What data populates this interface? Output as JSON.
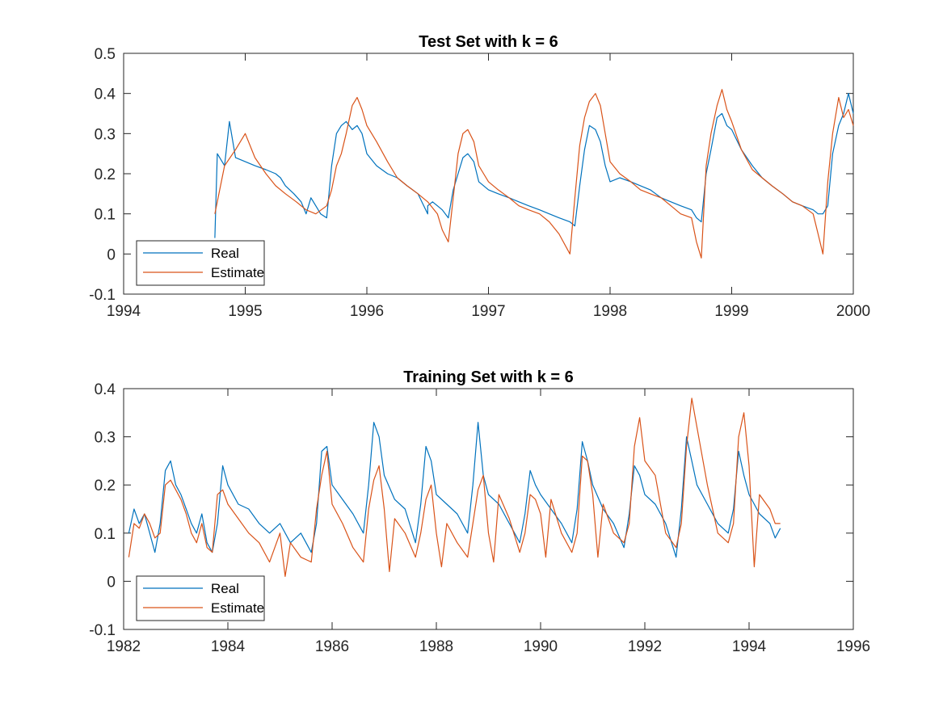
{
  "colors": {
    "real": "#0072BD",
    "estimate": "#D95319"
  },
  "chart_data": [
    {
      "type": "line",
      "title": "Test Set with k = 6",
      "xlim": [
        1994,
        2000
      ],
      "ylim": [
        -0.1,
        0.5
      ],
      "xticks": [
        1994,
        1995,
        1996,
        1997,
        1998,
        1999,
        2000
      ],
      "yticks": [
        -0.1,
        0,
        0.1,
        0.2,
        0.3,
        0.4,
        0.5
      ],
      "xtick_labels": [
        "1994",
        "1995",
        "1996",
        "1997",
        "1998",
        "1999",
        "2000"
      ],
      "ytick_labels": [
        "-0.1",
        "0",
        "0.1",
        "0.2",
        "0.3",
        "0.4",
        "0.5"
      ],
      "legend": {
        "position": "bottom-left",
        "entries": [
          "Real",
          "Estimate"
        ]
      },
      "series": [
        {
          "name": "Real",
          "x": [
            1994.75,
            1994.77,
            1994.83,
            1994.87,
            1994.92,
            1995.0,
            1995.08,
            1995.17,
            1995.25,
            1995.29,
            1995.33,
            1995.4,
            1995.46,
            1995.5,
            1995.54,
            1995.58,
            1995.62,
            1995.67,
            1995.71,
            1995.75,
            1995.79,
            1995.83,
            1995.88,
            1995.92,
            1995.96,
            1996.0,
            1996.08,
            1996.17,
            1996.25,
            1996.33,
            1996.42,
            1996.5,
            1996.5,
            1996.54,
            1996.58,
            1996.62,
            1996.67,
            1996.71,
            1996.75,
            1996.79,
            1996.83,
            1996.88,
            1996.92,
            1996.96,
            1997.0,
            1997.08,
            1997.17,
            1997.25,
            1997.33,
            1997.42,
            1997.5,
            1997.58,
            1997.67,
            1997.71,
            1997.75,
            1997.79,
            1997.83,
            1997.88,
            1997.92,
            1997.96,
            1998.0,
            1998.08,
            1998.17,
            1998.25,
            1998.33,
            1998.42,
            1998.5,
            1998.58,
            1998.67,
            1998.71,
            1998.75,
            1998.79,
            1998.83,
            1998.88,
            1998.92,
            1998.96,
            1999.0,
            1999.08,
            1999.17,
            1999.25,
            1999.33,
            1999.42,
            1999.5,
            1999.58,
            1999.67,
            1999.71,
            1999.75,
            1999.79,
            1999.83,
            1999.88,
            1999.92,
            1999.96,
            2000.0
          ],
          "y": [
            0.04,
            0.25,
            0.22,
            0.33,
            0.24,
            0.23,
            0.22,
            0.21,
            0.2,
            0.19,
            0.17,
            0.15,
            0.13,
            0.1,
            0.14,
            0.12,
            0.1,
            0.09,
            0.22,
            0.3,
            0.32,
            0.33,
            0.31,
            0.32,
            0.3,
            0.25,
            0.22,
            0.2,
            0.19,
            0.17,
            0.15,
            0.1,
            0.12,
            0.13,
            0.12,
            0.11,
            0.09,
            0.16,
            0.2,
            0.24,
            0.25,
            0.23,
            0.18,
            0.17,
            0.16,
            0.15,
            0.14,
            0.13,
            0.12,
            0.11,
            0.1,
            0.09,
            0.08,
            0.07,
            0.17,
            0.26,
            0.32,
            0.31,
            0.28,
            0.22,
            0.18,
            0.19,
            0.18,
            0.17,
            0.16,
            0.14,
            0.13,
            0.12,
            0.11,
            0.09,
            0.08,
            0.2,
            0.26,
            0.34,
            0.35,
            0.32,
            0.31,
            0.26,
            0.22,
            0.19,
            0.17,
            0.15,
            0.13,
            0.12,
            0.11,
            0.1,
            0.1,
            0.12,
            0.25,
            0.32,
            0.35,
            0.4,
            0.35
          ]
        },
        {
          "name": "Estimate",
          "x": [
            1994.75,
            1994.83,
            1994.92,
            1995.0,
            1995.08,
            1995.17,
            1995.25,
            1995.33,
            1995.42,
            1995.5,
            1995.58,
            1995.67,
            1995.71,
            1995.75,
            1995.79,
            1995.83,
            1995.88,
            1995.92,
            1995.96,
            1996.0,
            1996.08,
            1996.17,
            1996.25,
            1996.33,
            1996.42,
            1996.5,
            1996.58,
            1996.62,
            1996.67,
            1996.71,
            1996.75,
            1996.79,
            1996.83,
            1996.88,
            1996.92,
            1996.96,
            1997.0,
            1997.08,
            1997.17,
            1997.25,
            1997.33,
            1997.42,
            1997.5,
            1997.58,
            1997.67,
            1997.71,
            1997.75,
            1997.79,
            1997.83,
            1997.88,
            1997.92,
            1997.96,
            1998.0,
            1998.08,
            1998.17,
            1998.25,
            1998.33,
            1998.42,
            1998.5,
            1998.58,
            1998.67,
            1998.71,
            1998.75,
            1998.79,
            1998.83,
            1998.88,
            1998.92,
            1998.96,
            1999.0,
            1999.08,
            1999.17,
            1999.25,
            1999.33,
            1999.42,
            1999.5,
            1999.58,
            1999.67,
            1999.71,
            1999.75,
            1999.79,
            1999.83,
            1999.88,
            1999.92,
            1999.96,
            2000.0
          ],
          "y": [
            0.1,
            0.22,
            0.26,
            0.3,
            0.24,
            0.2,
            0.17,
            0.15,
            0.13,
            0.11,
            0.1,
            0.12,
            0.16,
            0.22,
            0.25,
            0.3,
            0.37,
            0.39,
            0.36,
            0.32,
            0.28,
            0.23,
            0.19,
            0.17,
            0.15,
            0.13,
            0.1,
            0.06,
            0.03,
            0.14,
            0.25,
            0.3,
            0.31,
            0.28,
            0.22,
            0.2,
            0.18,
            0.16,
            0.14,
            0.12,
            0.11,
            0.1,
            0.08,
            0.05,
            0.0,
            0.14,
            0.27,
            0.34,
            0.38,
            0.4,
            0.37,
            0.3,
            0.23,
            0.2,
            0.18,
            0.16,
            0.15,
            0.14,
            0.12,
            0.1,
            0.09,
            0.03,
            -0.01,
            0.22,
            0.3,
            0.37,
            0.41,
            0.36,
            0.33,
            0.26,
            0.21,
            0.19,
            0.17,
            0.15,
            0.13,
            0.12,
            0.1,
            0.05,
            0.0,
            0.18,
            0.3,
            0.39,
            0.34,
            0.36,
            0.32
          ]
        }
      ]
    },
    {
      "type": "line",
      "title": "Training Set with k = 6",
      "xlim": [
        1982,
        1996
      ],
      "ylim": [
        -0.1,
        0.4
      ],
      "xticks": [
        1982,
        1984,
        1986,
        1988,
        1990,
        1992,
        1994,
        1996
      ],
      "yticks": [
        -0.1,
        0,
        0.1,
        0.2,
        0.3,
        0.4
      ],
      "xtick_labels": [
        "1982",
        "1984",
        "1986",
        "1988",
        "1990",
        "1992",
        "1994",
        "1996"
      ],
      "ytick_labels": [
        "-0.1",
        "0",
        "0.1",
        "0.2",
        "0.3",
        "0.4"
      ],
      "legend": {
        "position": "bottom-left",
        "entries": [
          "Real",
          "Estimate"
        ]
      },
      "series": [
        {
          "name": "Real",
          "x": [
            1982.1,
            1982.2,
            1982.3,
            1982.4,
            1982.5,
            1982.6,
            1982.7,
            1982.8,
            1982.9,
            1983.0,
            1983.1,
            1983.2,
            1983.3,
            1983.4,
            1983.5,
            1983.6,
            1983.7,
            1983.8,
            1983.9,
            1984.0,
            1984.2,
            1984.4,
            1984.6,
            1984.8,
            1985.0,
            1985.2,
            1985.4,
            1985.6,
            1985.7,
            1985.8,
            1985.9,
            1986.0,
            1986.2,
            1986.4,
            1986.6,
            1986.7,
            1986.8,
            1986.9,
            1987.0,
            1987.2,
            1987.4,
            1987.6,
            1987.7,
            1987.8,
            1987.9,
            1988.0,
            1988.2,
            1988.4,
            1988.6,
            1988.7,
            1988.8,
            1988.9,
            1989.0,
            1989.2,
            1989.4,
            1989.6,
            1989.7,
            1989.8,
            1989.9,
            1990.0,
            1990.2,
            1990.4,
            1990.6,
            1990.7,
            1990.8,
            1990.9,
            1991.0,
            1991.2,
            1991.4,
            1991.6,
            1991.7,
            1991.8,
            1991.9,
            1992.0,
            1992.2,
            1992.4,
            1992.6,
            1992.7,
            1992.8,
            1992.9,
            1993.0,
            1993.2,
            1993.4,
            1993.6,
            1993.7,
            1993.8,
            1993.9,
            1994.0,
            1994.2,
            1994.4,
            1994.5,
            1994.6
          ],
          "y": [
            0.1,
            0.15,
            0.12,
            0.14,
            0.1,
            0.06,
            0.12,
            0.23,
            0.25,
            0.2,
            0.18,
            0.15,
            0.12,
            0.1,
            0.14,
            0.08,
            0.06,
            0.12,
            0.24,
            0.2,
            0.16,
            0.15,
            0.12,
            0.1,
            0.12,
            0.08,
            0.1,
            0.06,
            0.12,
            0.27,
            0.28,
            0.2,
            0.17,
            0.14,
            0.1,
            0.2,
            0.33,
            0.3,
            0.22,
            0.17,
            0.15,
            0.08,
            0.16,
            0.28,
            0.25,
            0.18,
            0.16,
            0.14,
            0.1,
            0.2,
            0.33,
            0.22,
            0.18,
            0.16,
            0.12,
            0.08,
            0.14,
            0.23,
            0.2,
            0.18,
            0.15,
            0.12,
            0.08,
            0.15,
            0.29,
            0.25,
            0.2,
            0.15,
            0.12,
            0.07,
            0.14,
            0.24,
            0.22,
            0.18,
            0.16,
            0.12,
            0.05,
            0.15,
            0.3,
            0.25,
            0.2,
            0.16,
            0.12,
            0.1,
            0.15,
            0.27,
            0.22,
            0.18,
            0.14,
            0.12,
            0.09,
            0.11
          ]
        },
        {
          "name": "Estimate",
          "x": [
            1982.1,
            1982.2,
            1982.3,
            1982.4,
            1982.5,
            1982.6,
            1982.7,
            1982.8,
            1982.9,
            1983.0,
            1983.1,
            1983.2,
            1983.3,
            1983.4,
            1983.5,
            1983.6,
            1983.7,
            1983.8,
            1983.9,
            1984.0,
            1984.2,
            1984.4,
            1984.6,
            1984.8,
            1985.0,
            1985.1,
            1985.2,
            1985.4,
            1985.6,
            1985.7,
            1985.8,
            1985.9,
            1986.0,
            1986.2,
            1986.4,
            1986.6,
            1986.7,
            1986.8,
            1986.9,
            1987.0,
            1987.1,
            1987.2,
            1987.4,
            1987.6,
            1987.7,
            1987.8,
            1987.9,
            1988.0,
            1988.1,
            1988.2,
            1988.4,
            1988.6,
            1988.7,
            1988.8,
            1988.9,
            1989.0,
            1989.1,
            1989.2,
            1989.4,
            1989.6,
            1989.7,
            1989.8,
            1989.9,
            1990.0,
            1990.1,
            1990.2,
            1990.4,
            1990.6,
            1990.7,
            1990.8,
            1990.9,
            1991.0,
            1991.1,
            1991.2,
            1991.4,
            1991.6,
            1991.7,
            1991.8,
            1991.9,
            1992.0,
            1992.2,
            1992.4,
            1992.6,
            1992.7,
            1992.8,
            1992.9,
            1993.0,
            1993.2,
            1993.4,
            1993.6,
            1993.7,
            1993.8,
            1993.9,
            1994.0,
            1994.1,
            1994.2,
            1994.4,
            1994.5,
            1994.6
          ],
          "y": [
            0.05,
            0.12,
            0.11,
            0.14,
            0.12,
            0.09,
            0.1,
            0.2,
            0.21,
            0.19,
            0.17,
            0.14,
            0.1,
            0.08,
            0.12,
            0.07,
            0.06,
            0.18,
            0.19,
            0.16,
            0.13,
            0.1,
            0.08,
            0.04,
            0.1,
            0.01,
            0.08,
            0.05,
            0.04,
            0.15,
            0.22,
            0.27,
            0.16,
            0.12,
            0.07,
            0.04,
            0.15,
            0.21,
            0.24,
            0.15,
            0.02,
            0.13,
            0.1,
            0.05,
            0.1,
            0.17,
            0.2,
            0.1,
            0.03,
            0.12,
            0.08,
            0.05,
            0.12,
            0.19,
            0.22,
            0.1,
            0.04,
            0.18,
            0.13,
            0.06,
            0.1,
            0.18,
            0.17,
            0.14,
            0.05,
            0.17,
            0.1,
            0.06,
            0.1,
            0.26,
            0.25,
            0.18,
            0.05,
            0.16,
            0.1,
            0.08,
            0.12,
            0.28,
            0.34,
            0.25,
            0.22,
            0.1,
            0.07,
            0.12,
            0.28,
            0.38,
            0.32,
            0.2,
            0.1,
            0.08,
            0.12,
            0.3,
            0.35,
            0.24,
            0.03,
            0.18,
            0.15,
            0.12,
            0.12
          ]
        }
      ]
    }
  ]
}
